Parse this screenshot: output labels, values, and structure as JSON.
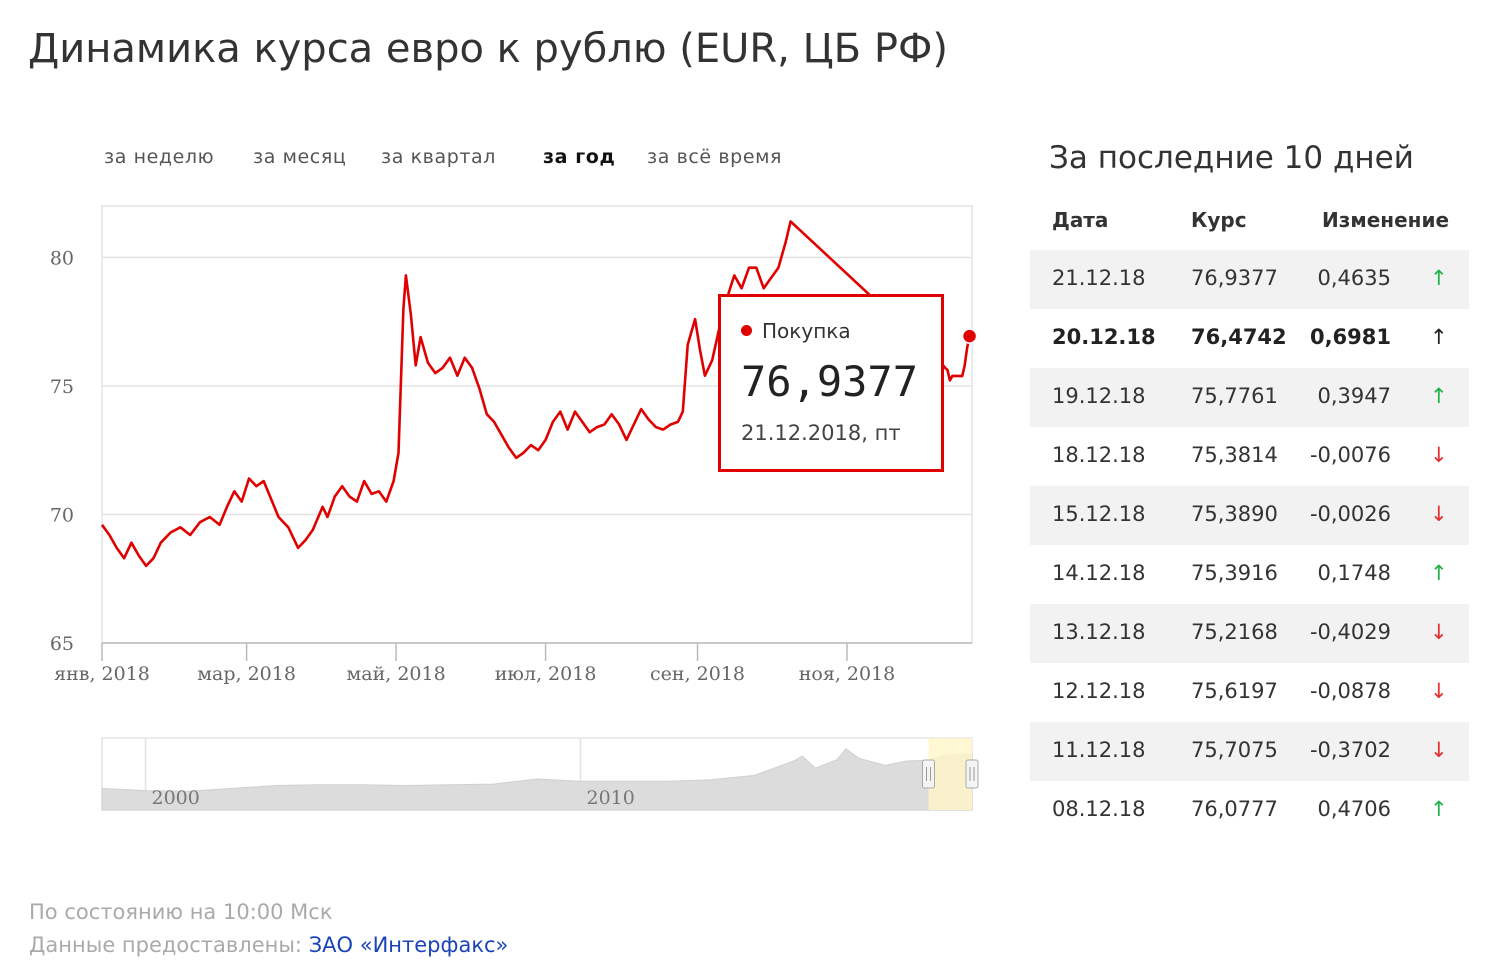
{
  "title": "Динамика курса евро к рублю (EUR, ЦБ РФ)",
  "period_tabs": [
    {
      "label": "за неделю",
      "active": false
    },
    {
      "label": "за месяц",
      "active": false
    },
    {
      "label": "за квартал",
      "active": false
    },
    {
      "label": "за год",
      "active": true
    },
    {
      "label": "за всё время",
      "active": false
    }
  ],
  "colors": {
    "line": "#e00000",
    "grid": "#e3e3e3",
    "navigator_area": "#dcdcdc",
    "navigator_selection": "#fff6c8",
    "up": "#22b24c",
    "down": "#e53030"
  },
  "chart_data": {
    "type": "line",
    "title": "",
    "xlabel": "",
    "ylabel": "",
    "ylim": [
      65,
      82
    ],
    "yticks": [
      65,
      70,
      75,
      80
    ],
    "xlim": [
      "2018-01-01",
      "2018-12-22"
    ],
    "xticks": [
      {
        "date": "2018-01-01",
        "label": "янв, 2018"
      },
      {
        "date": "2018-03-01",
        "label": "мар, 2018"
      },
      {
        "date": "2018-05-01",
        "label": "май, 2018"
      },
      {
        "date": "2018-07-01",
        "label": "июл, 2018"
      },
      {
        "date": "2018-09-01",
        "label": "сен, 2018"
      },
      {
        "date": "2018-11-01",
        "label": "ноя, 2018"
      }
    ],
    "grid": true,
    "series": [
      {
        "name": "Покупка",
        "points": [
          [
            "2018-01-01",
            69.6
          ],
          [
            "2018-01-04",
            69.2
          ],
          [
            "2018-01-07",
            68.7
          ],
          [
            "2018-01-10",
            68.3
          ],
          [
            "2018-01-13",
            68.9
          ],
          [
            "2018-01-16",
            68.4
          ],
          [
            "2018-01-19",
            68.0
          ],
          [
            "2018-01-22",
            68.3
          ],
          [
            "2018-01-25",
            68.9
          ],
          [
            "2018-01-29",
            69.3
          ],
          [
            "2018-02-02",
            69.5
          ],
          [
            "2018-02-06",
            69.2
          ],
          [
            "2018-02-10",
            69.7
          ],
          [
            "2018-02-14",
            69.9
          ],
          [
            "2018-02-18",
            69.6
          ],
          [
            "2018-02-21",
            70.3
          ],
          [
            "2018-02-24",
            70.9
          ],
          [
            "2018-02-27",
            70.5
          ],
          [
            "2018-03-02",
            71.4
          ],
          [
            "2018-03-05",
            71.1
          ],
          [
            "2018-03-08",
            71.3
          ],
          [
            "2018-03-11",
            70.6
          ],
          [
            "2018-03-14",
            69.9
          ],
          [
            "2018-03-18",
            69.5
          ],
          [
            "2018-03-22",
            68.7
          ],
          [
            "2018-03-25",
            69.0
          ],
          [
            "2018-03-28",
            69.4
          ],
          [
            "2018-04-01",
            70.3
          ],
          [
            "2018-04-03",
            69.9
          ],
          [
            "2018-04-06",
            70.7
          ],
          [
            "2018-04-09",
            71.1
          ],
          [
            "2018-04-12",
            70.7
          ],
          [
            "2018-04-15",
            70.5
          ],
          [
            "2018-04-18",
            71.3
          ],
          [
            "2018-04-21",
            70.8
          ],
          [
            "2018-04-24",
            70.9
          ],
          [
            "2018-04-27",
            70.5
          ],
          [
            "2018-04-30",
            71.3
          ],
          [
            "2018-05-02",
            72.4
          ],
          [
            "2018-05-04",
            78.0
          ],
          [
            "2018-05-05",
            79.3
          ],
          [
            "2018-05-07",
            77.8
          ],
          [
            "2018-05-09",
            75.8
          ],
          [
            "2018-05-11",
            76.9
          ],
          [
            "2018-05-14",
            75.9
          ],
          [
            "2018-05-17",
            75.5
          ],
          [
            "2018-05-20",
            75.7
          ],
          [
            "2018-05-23",
            76.1
          ],
          [
            "2018-05-26",
            75.4
          ],
          [
            "2018-05-29",
            76.1
          ],
          [
            "2018-06-01",
            75.7
          ],
          [
            "2018-06-04",
            74.9
          ],
          [
            "2018-06-07",
            73.9
          ],
          [
            "2018-06-10",
            73.6
          ],
          [
            "2018-06-13",
            73.1
          ],
          [
            "2018-06-16",
            72.6
          ],
          [
            "2018-06-19",
            72.2
          ],
          [
            "2018-06-22",
            72.4
          ],
          [
            "2018-06-25",
            72.7
          ],
          [
            "2018-06-28",
            72.5
          ],
          [
            "2018-07-01",
            72.9
          ],
          [
            "2018-07-04",
            73.6
          ],
          [
            "2018-07-07",
            74.0
          ],
          [
            "2018-07-10",
            73.3
          ],
          [
            "2018-07-13",
            74.0
          ],
          [
            "2018-07-16",
            73.6
          ],
          [
            "2018-07-19",
            73.2
          ],
          [
            "2018-07-22",
            73.4
          ],
          [
            "2018-07-25",
            73.5
          ],
          [
            "2018-07-28",
            73.9
          ],
          [
            "2018-07-31",
            73.5
          ],
          [
            "2018-08-03",
            72.9
          ],
          [
            "2018-08-06",
            73.5
          ],
          [
            "2018-08-09",
            74.1
          ],
          [
            "2018-08-12",
            73.7
          ],
          [
            "2018-08-15",
            73.4
          ],
          [
            "2018-08-18",
            73.3
          ],
          [
            "2018-08-21",
            73.5
          ],
          [
            "2018-08-24",
            73.6
          ],
          [
            "2018-08-26",
            74.0
          ],
          [
            "2018-08-28",
            76.6
          ],
          [
            "2018-08-31",
            77.6
          ],
          [
            "2018-09-02",
            76.4
          ],
          [
            "2018-09-04",
            75.4
          ],
          [
            "2018-09-07",
            76.0
          ],
          [
            "2018-09-10",
            77.3
          ],
          [
            "2018-09-13",
            78.4
          ],
          [
            "2018-09-16",
            79.3
          ],
          [
            "2018-09-19",
            78.8
          ],
          [
            "2018-09-22",
            79.6
          ],
          [
            "2018-09-25",
            79.6
          ],
          [
            "2018-09-28",
            78.8
          ],
          [
            "2018-10-01",
            79.2
          ],
          [
            "2018-10-04",
            79.6
          ],
          [
            "2018-10-07",
            80.6
          ],
          [
            "2018-10-09",
            81.4
          ],
          [
            "2018-12-08",
            76.0777
          ],
          [
            "2018-12-11",
            75.7075
          ],
          [
            "2018-12-12",
            75.6197
          ],
          [
            "2018-12-13",
            75.2168
          ],
          [
            "2018-12-14",
            75.3916
          ],
          [
            "2018-12-15",
            75.389
          ],
          [
            "2018-12-18",
            75.3814
          ],
          [
            "2018-12-19",
            75.7761
          ],
          [
            "2018-12-20",
            76.4742
          ],
          [
            "2018-12-21",
            76.9377
          ]
        ]
      }
    ],
    "tooltip": {
      "series": "Покупка",
      "value": "76,9377",
      "date": "21.12.2018, пт"
    },
    "navigator": {
      "labels": [
        {
          "year": 2000,
          "label": "2000"
        },
        {
          "year": 2010,
          "label": "2010"
        }
      ],
      "range_years": [
        1999,
        2019
      ],
      "selection_years": [
        2018,
        2019
      ],
      "grid_years": [
        2000,
        2010
      ],
      "points": [
        [
          1999.0,
          30
        ],
        [
          2000.0,
          27
        ],
        [
          2001.0,
          26
        ],
        [
          2002.0,
          30
        ],
        [
          2003.0,
          34
        ],
        [
          2004.0,
          35
        ],
        [
          2005.0,
          35
        ],
        [
          2006.0,
          34
        ],
        [
          2007.0,
          35
        ],
        [
          2008.0,
          36
        ],
        [
          2009.0,
          43
        ],
        [
          2010.0,
          40
        ],
        [
          2011.0,
          40
        ],
        [
          2012.0,
          40
        ],
        [
          2013.0,
          42
        ],
        [
          2014.0,
          48
        ],
        [
          2014.9,
          68
        ],
        [
          2015.1,
          75
        ],
        [
          2015.4,
          58
        ],
        [
          2015.9,
          70
        ],
        [
          2016.1,
          85
        ],
        [
          2016.4,
          72
        ],
        [
          2017.0,
          62
        ],
        [
          2017.5,
          68
        ],
        [
          2018.0,
          69
        ],
        [
          2018.4,
          76
        ],
        [
          2018.8,
          78
        ],
        [
          2019.0,
          77
        ]
      ]
    }
  },
  "last_days": {
    "title": "За последние 10 дней",
    "headers": {
      "date": "Дата",
      "rate": "Курс",
      "change": "Изменение"
    },
    "rows": [
      {
        "date": "21.12.18",
        "rate": "76,9377",
        "change": "0,4635",
        "direction": "up",
        "arrow": "↑",
        "bold": false
      },
      {
        "date": "20.12.18",
        "rate": "76,4742",
        "change": "0,6981",
        "direction": "up",
        "arrow": "↑",
        "bold": true
      },
      {
        "date": "19.12.18",
        "rate": "75,7761",
        "change": "0,3947",
        "direction": "up",
        "arrow": "↑",
        "bold": false
      },
      {
        "date": "18.12.18",
        "rate": "75,3814",
        "change": "-0,0076",
        "direction": "down",
        "arrow": "↓",
        "bold": false
      },
      {
        "date": "15.12.18",
        "rate": "75,3890",
        "change": "-0,0026",
        "direction": "down",
        "arrow": "↓",
        "bold": false
      },
      {
        "date": "14.12.18",
        "rate": "75,3916",
        "change": "0,1748",
        "direction": "up",
        "arrow": "↑",
        "bold": false
      },
      {
        "date": "13.12.18",
        "rate": "75,2168",
        "change": "-0,4029",
        "direction": "down",
        "arrow": "↓",
        "bold": false
      },
      {
        "date": "12.12.18",
        "rate": "75,6197",
        "change": "-0,0878",
        "direction": "down",
        "arrow": "↓",
        "bold": false
      },
      {
        "date": "11.12.18",
        "rate": "75,7075",
        "change": "-0,3702",
        "direction": "down",
        "arrow": "↓",
        "bold": false
      },
      {
        "date": "08.12.18",
        "rate": "76,0777",
        "change": "0,4706",
        "direction": "up",
        "arrow": "↑",
        "bold": false
      }
    ]
  },
  "footer": {
    "status": "По состоянию на 10:00 Мск",
    "source_label": "Данные предоставлены:",
    "source_link": "ЗАО «Интерфакс»"
  }
}
